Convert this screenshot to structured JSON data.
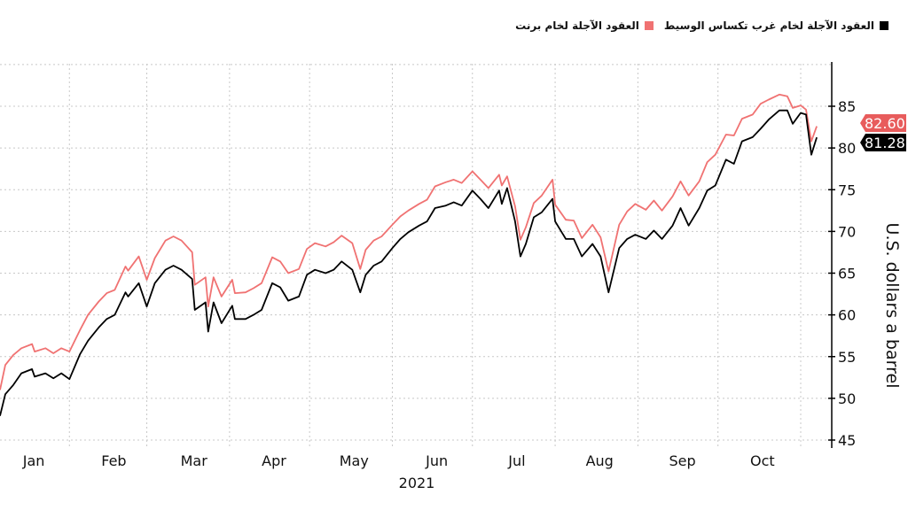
{
  "legend": {
    "items": [
      {
        "label": "العقود الآجلة لخام غرب تكساس الوسيط",
        "color": "#000000"
      },
      {
        "label": "العقود الآجلة لخام برنت",
        "color": "#f07272"
      }
    ]
  },
  "chart_data": {
    "type": "line",
    "title": "",
    "xlabel": "2021",
    "ylabel": "U.S. dollars a barrel",
    "ylim": [
      45,
      90
    ],
    "yticks": [
      45,
      50,
      55,
      60,
      65,
      70,
      75,
      80,
      85
    ],
    "xlim": [
      5,
      317
    ],
    "month_ticks": [
      {
        "label": "Jan",
        "center": 15,
        "start": 1
      },
      {
        "label": "Feb",
        "center": 45,
        "start": 31
      },
      {
        "label": "Mar",
        "center": 75,
        "start": 60
      },
      {
        "label": "Apr",
        "center": 105,
        "start": 91
      },
      {
        "label": "May",
        "center": 135,
        "start": 121
      },
      {
        "label": "Jun",
        "center": 166,
        "start": 152
      },
      {
        "label": "Jul",
        "center": 196,
        "start": 182
      },
      {
        "label": "Aug",
        "center": 227,
        "start": 213
      },
      {
        "label": "Sep",
        "center": 258,
        "start": 244
      },
      {
        "label": "Oct",
        "center": 288,
        "start": 274
      },
      {
        "label": "",
        "center": null,
        "start": 305
      }
    ],
    "grid": true,
    "axis_position": "right",
    "x": [
      5,
      7,
      10,
      13,
      17,
      18,
      22,
      25,
      28,
      31,
      35,
      38,
      42,
      45,
      48,
      52,
      53,
      57,
      60,
      63,
      67,
      70,
      73,
      77,
      78,
      82,
      83,
      85,
      88,
      92,
      93,
      97,
      100,
      103,
      107,
      110,
      113,
      117,
      120,
      123,
      127,
      130,
      133,
      137,
      140,
      142,
      145,
      148,
      152,
      155,
      158,
      162,
      165,
      168,
      172,
      175,
      178,
      182,
      185,
      188,
      192,
      193,
      195,
      198,
      200,
      202,
      205,
      208,
      212,
      213,
      217,
      220,
      223,
      227,
      230,
      233,
      237,
      240,
      243,
      247,
      250,
      253,
      257,
      260,
      263,
      267,
      270,
      273,
      277,
      280,
      283,
      287,
      290,
      293,
      297,
      300,
      302,
      305,
      307,
      309,
      311
    ],
    "series": [
      {
        "name": "WTI",
        "color": "#000000",
        "last_label": "81.28",
        "values": [
          47.9,
          50.5,
          51.6,
          53,
          53.5,
          52.6,
          53,
          52.4,
          53,
          52.3,
          55.3,
          56.9,
          58.5,
          59.5,
          60,
          62.7,
          62.2,
          63.8,
          61,
          63.8,
          65.4,
          65.9,
          65.4,
          64.3,
          60.6,
          61.5,
          58,
          61.5,
          59,
          61.1,
          59.5,
          59.5,
          60,
          60.6,
          63.8,
          63.3,
          61.7,
          62.2,
          64.8,
          65.4,
          65,
          65.4,
          66.4,
          65.4,
          62.7,
          64.8,
          65.9,
          66.4,
          68,
          69.1,
          69.9,
          70.7,
          71.2,
          72.8,
          73.1,
          73.5,
          73.1,
          74.9,
          73.9,
          72.8,
          74.9,
          73.3,
          75.2,
          71.2,
          67,
          68.5,
          71.7,
          72.3,
          73.9,
          71.2,
          69.1,
          69.1,
          67,
          68.5,
          67,
          62.7,
          68,
          69.1,
          69.6,
          69.1,
          70.1,
          69.1,
          70.7,
          72.8,
          70.7,
          72.8,
          74.9,
          75.5,
          78.6,
          78.1,
          80.8,
          81.3,
          82.3,
          83.4,
          84.5,
          84.5,
          82.9,
          84.2,
          84,
          79.2,
          81.28
        ]
      },
      {
        "name": "Brent",
        "color": "#f07272",
        "last_label": "82.60",
        "values": [
          51,
          54,
          55.2,
          56,
          56.5,
          55.6,
          56,
          55.4,
          56,
          55.6,
          58.2,
          60,
          61.6,
          62.6,
          63,
          65.8,
          65.3,
          67,
          64.2,
          66.8,
          68.9,
          69.4,
          68.9,
          67.5,
          63.6,
          64.5,
          61,
          64.5,
          62.2,
          64.2,
          62.6,
          62.7,
          63.2,
          63.8,
          66.9,
          66.4,
          65,
          65.5,
          67.9,
          68.6,
          68.2,
          68.7,
          69.5,
          68.6,
          65.5,
          67.8,
          68.9,
          69.4,
          70.8,
          71.8,
          72.5,
          73.3,
          73.8,
          75.4,
          75.9,
          76.2,
          75.8,
          77.2,
          76.2,
          75.2,
          76.8,
          75.5,
          76.6,
          73,
          69,
          70.5,
          73.4,
          74.3,
          76.2,
          73.2,
          71.4,
          71.3,
          69.2,
          70.8,
          69.3,
          65.2,
          70.8,
          72.4,
          73.3,
          72.6,
          73.7,
          72.5,
          74.2,
          76,
          74.3,
          76,
          78.3,
          79.2,
          81.6,
          81.5,
          83.5,
          84,
          85.3,
          85.8,
          86.4,
          86.2,
          84.8,
          85.1,
          84.6,
          80.8,
          82.6
        ]
      }
    ]
  }
}
